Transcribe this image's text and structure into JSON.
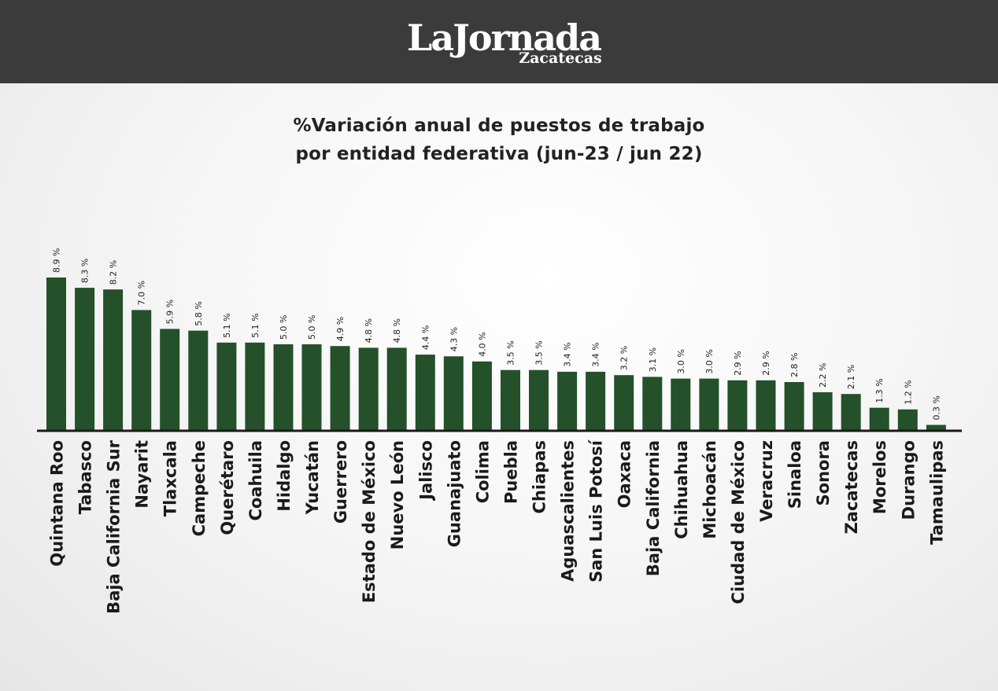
{
  "header": {
    "logo_main": "LaJornada",
    "logo_sub": "Zacatecas"
  },
  "colors": {
    "header_bg": "#3a3b3a",
    "bar": "#24502a",
    "axis": "#1a1a1a",
    "text": "#222222"
  },
  "chart_data": {
    "type": "bar",
    "title_line1": "%Variación anual de puestos de trabajo",
    "title_line2": "por entidad federativa (jun-23 / jun 22)",
    "xlabel": "",
    "ylabel": "",
    "ylim": [
      0,
      9
    ],
    "grid": false,
    "legend": "none",
    "categories": [
      "Quintana Roo",
      "Tabasco",
      "Baja California Sur",
      "Nayarit",
      "Tlaxcala",
      "Campeche",
      "Querétaro",
      "Coahuila",
      "Hidalgo",
      "Yucatán",
      "Guerrero",
      "Estado de México",
      "Nuevo León",
      "Jalisco",
      "Guanajuato",
      "Colima",
      "Puebla",
      "Chiapas",
      "Aguascalientes",
      "San Luis Potosí",
      "Oaxaca",
      "Baja California",
      "Chihuahua",
      "Michoacán",
      "Ciudad de México",
      "Veracruz",
      "Sinaloa",
      "Sonora",
      "Zacatecas",
      "Morelos",
      "Durango",
      "Tamaulipas"
    ],
    "values": [
      8.9,
      8.3,
      8.2,
      7.0,
      5.9,
      5.8,
      5.1,
      5.1,
      5.0,
      5.0,
      4.9,
      4.8,
      4.8,
      4.4,
      4.3,
      4.0,
      3.5,
      3.5,
      3.4,
      3.4,
      3.2,
      3.1,
      3.0,
      3.0,
      2.9,
      2.9,
      2.8,
      2.2,
      2.1,
      1.3,
      1.2,
      0.3
    ],
    "value_labels": [
      "8.9 %",
      "8.3 %",
      "8.2 %",
      "7.0 %",
      "5.9 %",
      "5.8 %",
      "5.1 %",
      "5.1 %",
      "5.0 %",
      "5.0 %",
      "4.9 %",
      "4.8 %",
      "4.8 %",
      "4.4 %",
      "4.3 %",
      "4.0 %",
      "3.5 %",
      "3.5 %",
      "3.4 %",
      "3.4 %",
      "3.2 %",
      "3.1 %",
      "3.0 %",
      "3.0 %",
      "2.9 %",
      "2.9 %",
      "2.8 %",
      "2.2 %",
      "2.1 %",
      "1.3 %",
      "1.2 %",
      "0.3 %"
    ]
  }
}
